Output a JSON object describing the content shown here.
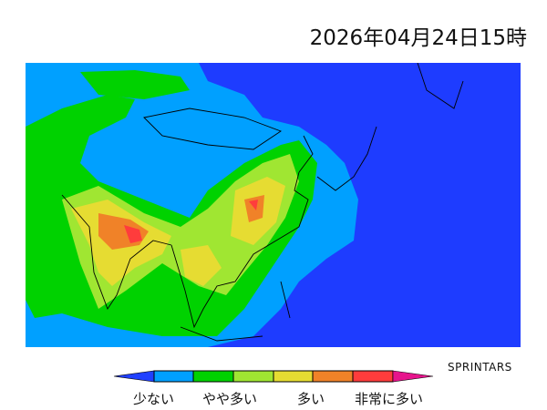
{
  "title": "2026年04月24日15時",
  "credit": "SPRINTARS",
  "map": {
    "region": "Asia",
    "colors": {
      "ocean_low": "#1e3cff",
      "level1": "#00a0ff",
      "level2": "#00d200",
      "level3": "#a0e632",
      "level4": "#e6dc32",
      "level5": "#f08228",
      "level6": "#ff3c3c",
      "level7": "#e6148c"
    }
  },
  "legend": {
    "labels": [
      "少ない",
      "やや多い",
      "多い",
      "非常に多い"
    ],
    "colors": [
      "#2040ff",
      "#00a0ff",
      "#00d200",
      "#a0e632",
      "#e6dc32",
      "#f08228",
      "#ff3c3c",
      "#e6148c"
    ]
  }
}
